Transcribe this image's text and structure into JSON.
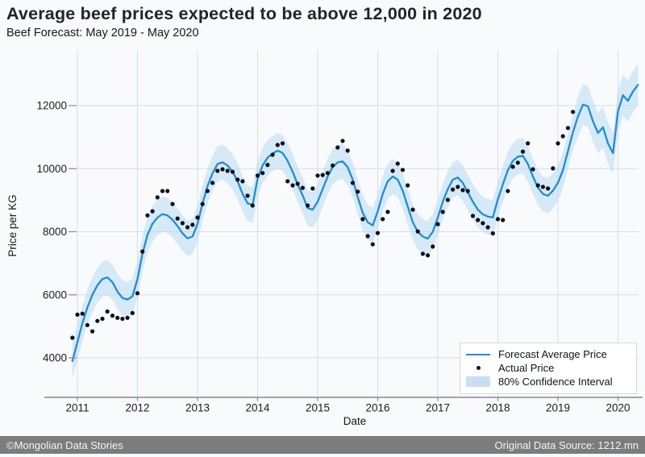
{
  "header": {
    "title": "Average beef prices expected to be above 12,000 in 2020",
    "subtitle": "Beef Forecast: May 2019 - May 2020"
  },
  "footer": {
    "left": "©Mongolian Data Stories",
    "right": "Original Data Source: 1212.mn"
  },
  "legend": {
    "items": [
      {
        "label": "Forecast Average Price",
        "type": "line"
      },
      {
        "label": "Actual Price",
        "type": "point"
      },
      {
        "label": "80% Confidence Interval",
        "type": "band"
      }
    ]
  },
  "colors": {
    "background": "#f8fafc",
    "title": "#20242e",
    "forecast_line": "#1f8ed2",
    "actual_point": "#0d0d16",
    "ci_band": "#badaf0",
    "grid": "#d8dde3",
    "spine": "#96999e",
    "tick_mark": "#888b8f",
    "footer_bg": "#7c7c7c"
  },
  "chart_data": {
    "type": "line",
    "title": "Average beef prices expected to be above 12,000 in 2020",
    "subtitle": "Beef Forecast: May 2019 - May 2020",
    "xlabel": "Date",
    "ylabel": "Price per KG",
    "grid": true,
    "legend_position": "bottom-right",
    "x_start_year": 2010.916667,
    "x_step_years": 0.083333,
    "x_ticks": [
      2011,
      2012,
      2013,
      2014,
      2015,
      2016,
      2017,
      2018,
      2019,
      2020
    ],
    "y_ticks": [
      4000,
      6000,
      8000,
      10000,
      12000
    ],
    "xlim": [
      2010.85,
      2020.4
    ],
    "ylim": [
      2800,
      13700
    ],
    "series": [
      {
        "name": "Forecast Average Price",
        "type": "line",
        "values": [
          3900,
          4500,
          5100,
          5600,
          6000,
          6300,
          6500,
          6550,
          6400,
          6100,
          5900,
          5850,
          5950,
          6500,
          7300,
          7900,
          8250,
          8450,
          8560,
          8520,
          8380,
          8180,
          7950,
          7790,
          7850,
          8250,
          8900,
          9450,
          9850,
          10150,
          10200,
          10100,
          9900,
          9600,
          9200,
          8900,
          8850,
          9680,
          10100,
          10350,
          10480,
          10570,
          10500,
          10250,
          9900,
          9500,
          9150,
          8750,
          8700,
          8950,
          9350,
          9750,
          10050,
          10200,
          10230,
          10050,
          9650,
          9100,
          8600,
          8300,
          8200,
          8650,
          9200,
          9600,
          9750,
          9650,
          9300,
          8800,
          8300,
          8000,
          7850,
          7780,
          8000,
          8450,
          8950,
          9350,
          9650,
          9720,
          9550,
          9250,
          8950,
          8700,
          8550,
          8480,
          8450,
          9030,
          9500,
          9950,
          10250,
          10380,
          10410,
          10150,
          9750,
          9400,
          9200,
          9140,
          9300,
          9550,
          9950,
          10550,
          11150,
          11650,
          12030,
          11980,
          11500,
          11130,
          11310,
          10800,
          10490,
          11820,
          12330,
          12150,
          12450,
          12660
        ]
      },
      {
        "name": "Actual Price",
        "type": "scatter",
        "values": [
          4640,
          5370,
          5400,
          5040,
          4840,
          5170,
          5240,
          5470,
          5340,
          5270,
          5240,
          5270,
          5420,
          6050,
          7370,
          8520,
          8650,
          9090,
          9290,
          9290,
          8880,
          8420,
          8270,
          8140,
          8220,
          8450,
          8880,
          9290,
          9550,
          9930,
          9980,
          9930,
          9900,
          9650,
          9600,
          9140,
          8830,
          9780,
          9860,
          10120,
          10440,
          10750,
          10800,
          9600,
          9470,
          9520,
          9390,
          8830,
          9370,
          9780,
          9800,
          9860,
          10100,
          10670,
          10880,
          10570,
          9550,
          9270,
          8400,
          7860,
          7600,
          7960,
          8400,
          8630,
          9930,
          10160,
          9960,
          9470,
          8700,
          8010,
          7300,
          7250,
          7530,
          8240,
          8630,
          9010,
          9340,
          9420,
          9320,
          9290,
          8500,
          8370,
          8270,
          8140,
          7950,
          8400,
          8370,
          9290,
          10060,
          10190,
          10540,
          10800,
          9980,
          9470,
          9420,
          9370,
          10010,
          10800,
          11030,
          11290,
          11800
        ]
      },
      {
        "name": "80% Confidence Interval",
        "type": "band",
        "offset_historical": 560,
        "offset_forecast": 650,
        "forecast_start_index": 101
      }
    ]
  }
}
